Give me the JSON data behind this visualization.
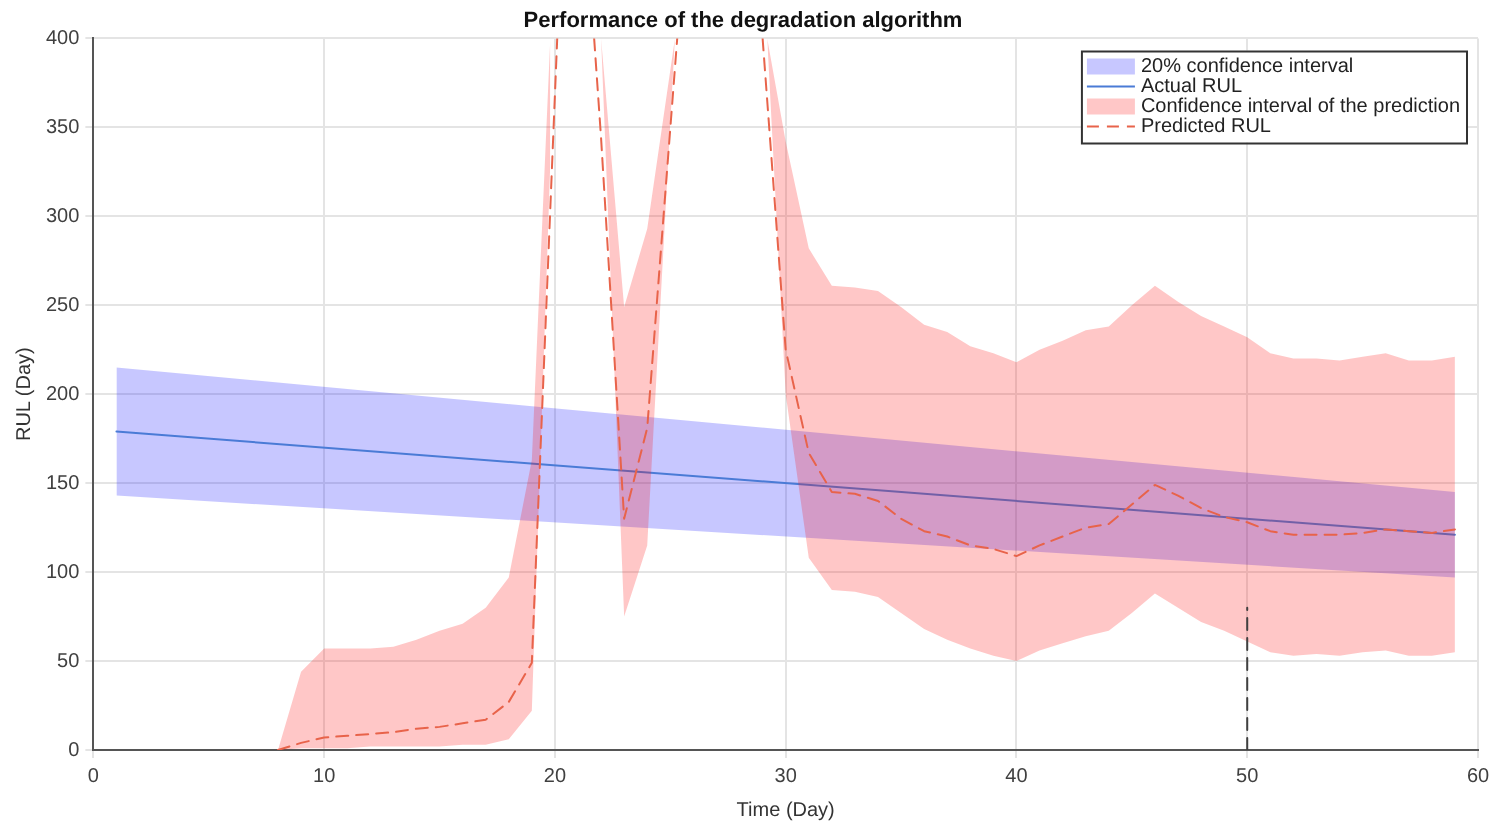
{
  "chart_data": {
    "type": "line",
    "title": "Performance of the degradation algorithm",
    "xlabel": "Time (Day)",
    "ylabel": "RUL (Day)",
    "xlim": [
      0,
      60
    ],
    "xticks": [
      0,
      10,
      20,
      30,
      40,
      50,
      60
    ],
    "ylim": [
      0,
      400
    ],
    "yticks": [
      0,
      50,
      100,
      150,
      200,
      250,
      300,
      350,
      400
    ],
    "grid": true,
    "legend": "top right",
    "marker": "none",
    "series": [
      {
        "name": "20% confidence interval",
        "type": "line",
        "color": "#0000ff",
        "x": [
          1,
          59
        ],
        "values": [
          null,
          null
        ],
        "lower": [
          143,
          97
        ],
        "upper": [
          215,
          145
        ]
      },
      {
        "name": "Actual RUL",
        "color": "#4a7bd6",
        "line_style": "solid",
        "x": [
          1,
          59
        ],
        "values": [
          179,
          121
        ]
      },
      {
        "name": "Confidence interval of the prediction",
        "type": "line",
        "color": "#ff0000",
        "x": [
          8,
          9,
          10,
          11,
          12,
          13,
          14,
          15,
          16,
          17,
          18,
          19,
          19.8,
          21,
          22,
          23,
          24,
          25.2,
          27,
          29.2,
          30,
          31,
          32,
          33,
          34,
          35,
          36,
          37,
          38,
          39,
          40,
          41,
          42,
          43,
          44,
          45,
          46,
          47,
          48,
          49,
          50,
          51,
          52,
          53,
          54,
          55,
          56,
          57,
          58,
          59
        ],
        "values": [
          null,
          null,
          null,
          null,
          null,
          null,
          null,
          null,
          null,
          null,
          null,
          null,
          null,
          null,
          null,
          null,
          null,
          null,
          null,
          null,
          null,
          null,
          null,
          null,
          null,
          null,
          null,
          null,
          null,
          null,
          null,
          null,
          null,
          null,
          null,
          null,
          null,
          null,
          null,
          null,
          null,
          null,
          null,
          null,
          null,
          null,
          null,
          null,
          null,
          null
        ],
        "lower": [
          0,
          1,
          1,
          1,
          2,
          2,
          2,
          2,
          3,
          3,
          6,
          22,
          330,
          null,
          400,
          75,
          115,
          400,
          null,
          400,
          200,
          108,
          90,
          89,
          86,
          77,
          68,
          62,
          57,
          53,
          50,
          56,
          60,
          64,
          67,
          77,
          88,
          80,
          72,
          67,
          61,
          55,
          53,
          54,
          53,
          55,
          56,
          53,
          53,
          55
        ],
        "upper": [
          0,
          44,
          57,
          57,
          57,
          58,
          62,
          67,
          71,
          80,
          97,
          163,
          400,
          null,
          400,
          249,
          293,
          400,
          null,
          400,
          342,
          282,
          261,
          260,
          258,
          249,
          239,
          235,
          227,
          223,
          218,
          225,
          230,
          236,
          238,
          250,
          261,
          252,
          244,
          238,
          232,
          223,
          220,
          220,
          219,
          221,
          223,
          219,
          219,
          221
        ]
      },
      {
        "name": "Predicted RUL",
        "type": "line",
        "color": "#e8634a",
        "line_style": "dashed",
        "x": [
          8,
          9,
          10,
          11,
          12,
          13,
          14,
          15,
          16,
          17,
          18,
          19,
          20.1,
          21,
          21.7,
          22,
          23,
          24,
          25.3,
          27,
          29,
          30,
          31,
          32,
          33,
          34,
          35,
          36,
          37,
          38,
          39,
          40,
          41,
          42,
          43,
          44,
          45,
          46,
          47,
          48,
          49,
          50,
          51,
          52,
          53,
          54,
          55,
          56,
          57,
          58,
          59
        ],
        "values": [
          0,
          4,
          7,
          8,
          9,
          10,
          12,
          13,
          15,
          17,
          27,
          49,
          400,
          null,
          400,
          344,
          130,
          181,
          400,
          null,
          400,
          225,
          167,
          145,
          144,
          140,
          130,
          123,
          120,
          115,
          113,
          109,
          115,
          120,
          125,
          127,
          138,
          149,
          143,
          136,
          131,
          128,
          123,
          121,
          121,
          121,
          122,
          124,
          123,
          122,
          124
        ]
      },
      {
        "color": "#404040",
        "line_style": "dashed",
        "x": [
          50,
          50
        ],
        "values": [
          0,
          80
        ]
      }
    ]
  }
}
